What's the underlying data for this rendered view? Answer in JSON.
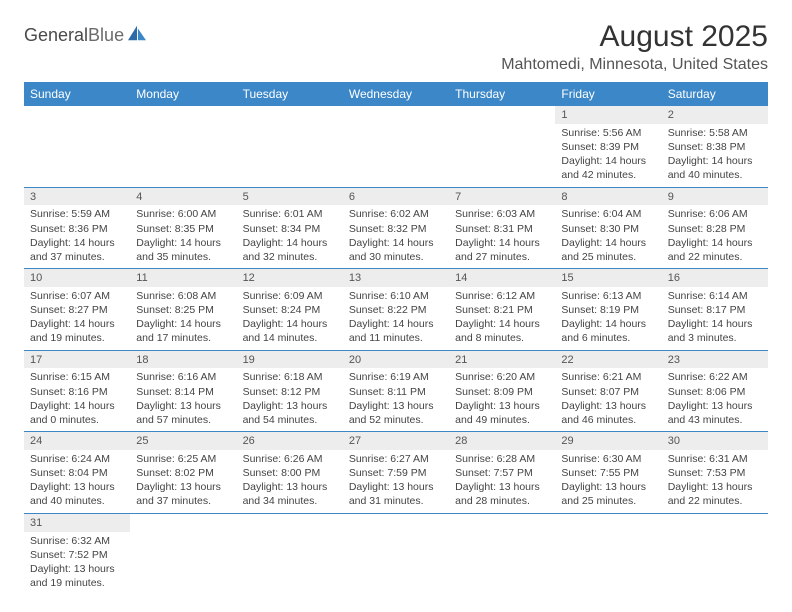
{
  "logo": {
    "text1": "General",
    "text2": "Blue"
  },
  "title": "August 2025",
  "location": "Mahtomedi, Minnesota, United States",
  "colors": {
    "header_bg": "#3b87c8",
    "header_text": "#ffffff",
    "cell_num_bg": "#ededed",
    "border": "#3b87c8",
    "body_text": "#444444"
  },
  "day_names": [
    "Sunday",
    "Monday",
    "Tuesday",
    "Wednesday",
    "Thursday",
    "Friday",
    "Saturday"
  ],
  "weeks": [
    [
      null,
      null,
      null,
      null,
      null,
      {
        "n": "1",
        "sr": "Sunrise: 5:56 AM",
        "ss": "Sunset: 8:39 PM",
        "dl": "Daylight: 14 hours and 42 minutes."
      },
      {
        "n": "2",
        "sr": "Sunrise: 5:58 AM",
        "ss": "Sunset: 8:38 PM",
        "dl": "Daylight: 14 hours and 40 minutes."
      }
    ],
    [
      {
        "n": "3",
        "sr": "Sunrise: 5:59 AM",
        "ss": "Sunset: 8:36 PM",
        "dl": "Daylight: 14 hours and 37 minutes."
      },
      {
        "n": "4",
        "sr": "Sunrise: 6:00 AM",
        "ss": "Sunset: 8:35 PM",
        "dl": "Daylight: 14 hours and 35 minutes."
      },
      {
        "n": "5",
        "sr": "Sunrise: 6:01 AM",
        "ss": "Sunset: 8:34 PM",
        "dl": "Daylight: 14 hours and 32 minutes."
      },
      {
        "n": "6",
        "sr": "Sunrise: 6:02 AM",
        "ss": "Sunset: 8:32 PM",
        "dl": "Daylight: 14 hours and 30 minutes."
      },
      {
        "n": "7",
        "sr": "Sunrise: 6:03 AM",
        "ss": "Sunset: 8:31 PM",
        "dl": "Daylight: 14 hours and 27 minutes."
      },
      {
        "n": "8",
        "sr": "Sunrise: 6:04 AM",
        "ss": "Sunset: 8:30 PM",
        "dl": "Daylight: 14 hours and 25 minutes."
      },
      {
        "n": "9",
        "sr": "Sunrise: 6:06 AM",
        "ss": "Sunset: 8:28 PM",
        "dl": "Daylight: 14 hours and 22 minutes."
      }
    ],
    [
      {
        "n": "10",
        "sr": "Sunrise: 6:07 AM",
        "ss": "Sunset: 8:27 PM",
        "dl": "Daylight: 14 hours and 19 minutes."
      },
      {
        "n": "11",
        "sr": "Sunrise: 6:08 AM",
        "ss": "Sunset: 8:25 PM",
        "dl": "Daylight: 14 hours and 17 minutes."
      },
      {
        "n": "12",
        "sr": "Sunrise: 6:09 AM",
        "ss": "Sunset: 8:24 PM",
        "dl": "Daylight: 14 hours and 14 minutes."
      },
      {
        "n": "13",
        "sr": "Sunrise: 6:10 AM",
        "ss": "Sunset: 8:22 PM",
        "dl": "Daylight: 14 hours and 11 minutes."
      },
      {
        "n": "14",
        "sr": "Sunrise: 6:12 AM",
        "ss": "Sunset: 8:21 PM",
        "dl": "Daylight: 14 hours and 8 minutes."
      },
      {
        "n": "15",
        "sr": "Sunrise: 6:13 AM",
        "ss": "Sunset: 8:19 PM",
        "dl": "Daylight: 14 hours and 6 minutes."
      },
      {
        "n": "16",
        "sr": "Sunrise: 6:14 AM",
        "ss": "Sunset: 8:17 PM",
        "dl": "Daylight: 14 hours and 3 minutes."
      }
    ],
    [
      {
        "n": "17",
        "sr": "Sunrise: 6:15 AM",
        "ss": "Sunset: 8:16 PM",
        "dl": "Daylight: 14 hours and 0 minutes."
      },
      {
        "n": "18",
        "sr": "Sunrise: 6:16 AM",
        "ss": "Sunset: 8:14 PM",
        "dl": "Daylight: 13 hours and 57 minutes."
      },
      {
        "n": "19",
        "sr": "Sunrise: 6:18 AM",
        "ss": "Sunset: 8:12 PM",
        "dl": "Daylight: 13 hours and 54 minutes."
      },
      {
        "n": "20",
        "sr": "Sunrise: 6:19 AM",
        "ss": "Sunset: 8:11 PM",
        "dl": "Daylight: 13 hours and 52 minutes."
      },
      {
        "n": "21",
        "sr": "Sunrise: 6:20 AM",
        "ss": "Sunset: 8:09 PM",
        "dl": "Daylight: 13 hours and 49 minutes."
      },
      {
        "n": "22",
        "sr": "Sunrise: 6:21 AM",
        "ss": "Sunset: 8:07 PM",
        "dl": "Daylight: 13 hours and 46 minutes."
      },
      {
        "n": "23",
        "sr": "Sunrise: 6:22 AM",
        "ss": "Sunset: 8:06 PM",
        "dl": "Daylight: 13 hours and 43 minutes."
      }
    ],
    [
      {
        "n": "24",
        "sr": "Sunrise: 6:24 AM",
        "ss": "Sunset: 8:04 PM",
        "dl": "Daylight: 13 hours and 40 minutes."
      },
      {
        "n": "25",
        "sr": "Sunrise: 6:25 AM",
        "ss": "Sunset: 8:02 PM",
        "dl": "Daylight: 13 hours and 37 minutes."
      },
      {
        "n": "26",
        "sr": "Sunrise: 6:26 AM",
        "ss": "Sunset: 8:00 PM",
        "dl": "Daylight: 13 hours and 34 minutes."
      },
      {
        "n": "27",
        "sr": "Sunrise: 6:27 AM",
        "ss": "Sunset: 7:59 PM",
        "dl": "Daylight: 13 hours and 31 minutes."
      },
      {
        "n": "28",
        "sr": "Sunrise: 6:28 AM",
        "ss": "Sunset: 7:57 PM",
        "dl": "Daylight: 13 hours and 28 minutes."
      },
      {
        "n": "29",
        "sr": "Sunrise: 6:30 AM",
        "ss": "Sunset: 7:55 PM",
        "dl": "Daylight: 13 hours and 25 minutes."
      },
      {
        "n": "30",
        "sr": "Sunrise: 6:31 AM",
        "ss": "Sunset: 7:53 PM",
        "dl": "Daylight: 13 hours and 22 minutes."
      }
    ],
    [
      {
        "n": "31",
        "sr": "Sunrise: 6:32 AM",
        "ss": "Sunset: 7:52 PM",
        "dl": "Daylight: 13 hours and 19 minutes."
      },
      null,
      null,
      null,
      null,
      null,
      null
    ]
  ]
}
